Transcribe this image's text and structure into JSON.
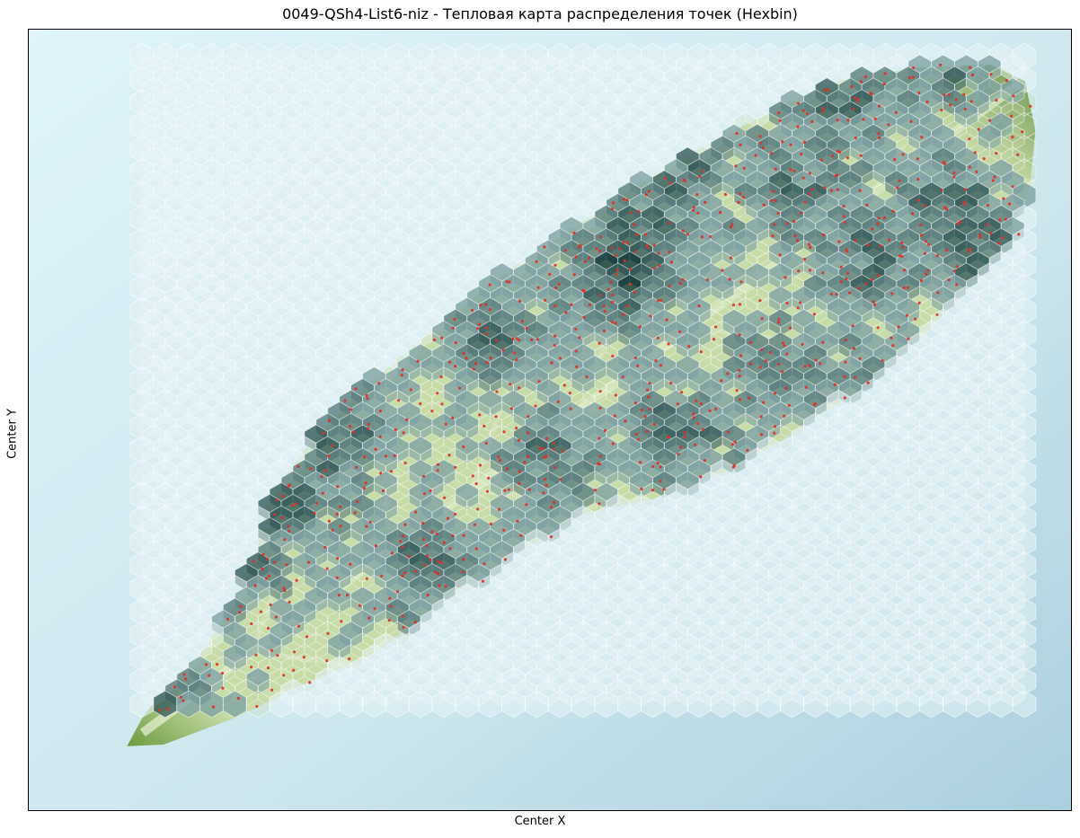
{
  "chart_data": {
    "type": "heatmap",
    "subtype": "hexbin",
    "title": "0049-QSh4-List6-niz - Тепловая карта распределения точек (Hexbin)",
    "xlabel": "Center X",
    "ylabel": "Center Y",
    "xticks": [],
    "yticks": [],
    "grid": false,
    "legend": "none",
    "background": "leaf photograph",
    "hex_grid": {
      "columns": 39,
      "rows": 57,
      "count_range": [
        0,
        4
      ]
    },
    "leaf_outline": [
      [
        0.095,
        0.917
      ],
      [
        0.11,
        0.88
      ],
      [
        0.13,
        0.845
      ],
      [
        0.165,
        0.8
      ],
      [
        0.2,
        0.73
      ],
      [
        0.22,
        0.665
      ],
      [
        0.23,
        0.6
      ],
      [
        0.27,
        0.53
      ],
      [
        0.33,
        0.45
      ],
      [
        0.4,
        0.37
      ],
      [
        0.47,
        0.3
      ],
      [
        0.55,
        0.23
      ],
      [
        0.62,
        0.17
      ],
      [
        0.72,
        0.1
      ],
      [
        0.78,
        0.065
      ],
      [
        0.85,
        0.05
      ],
      [
        0.92,
        0.045
      ],
      [
        0.955,
        0.067
      ],
      [
        0.965,
        0.13
      ],
      [
        0.96,
        0.2
      ],
      [
        0.94,
        0.27
      ],
      [
        0.9,
        0.33
      ],
      [
        0.86,
        0.39
      ],
      [
        0.81,
        0.45
      ],
      [
        0.74,
        0.51
      ],
      [
        0.68,
        0.56
      ],
      [
        0.6,
        0.6
      ],
      [
        0.53,
        0.62
      ],
      [
        0.47,
        0.67
      ],
      [
        0.41,
        0.72
      ],
      [
        0.33,
        0.8
      ],
      [
        0.26,
        0.84
      ],
      [
        0.2,
        0.88
      ],
      [
        0.13,
        0.915
      ]
    ],
    "dense_clusters": [
      [
        0.77,
        0.09
      ],
      [
        0.86,
        0.05
      ],
      [
        0.88,
        0.23
      ],
      [
        0.93,
        0.3
      ],
      [
        0.73,
        0.22
      ],
      [
        0.62,
        0.17
      ],
      [
        0.58,
        0.28
      ],
      [
        0.8,
        0.3
      ],
      [
        0.85,
        0.45
      ],
      [
        0.72,
        0.45
      ],
      [
        0.62,
        0.52
      ],
      [
        0.56,
        0.33
      ],
      [
        0.45,
        0.4
      ],
      [
        0.3,
        0.52
      ],
      [
        0.25,
        0.6
      ],
      [
        0.38,
        0.7
      ],
      [
        0.2,
        0.68
      ],
      [
        0.12,
        0.85
      ],
      [
        0.5,
        0.55
      ],
      [
        0.69,
        0.62
      ]
    ],
    "colors": {
      "hex_empty": "#e6f2f5",
      "hex_edge": "#ffffff",
      "count_low": "#7fa3a2",
      "count_high": "#123a3a",
      "points": "#e0302a",
      "leaf_light": "#c9dca8",
      "leaf_dark": "#6f9b40",
      "background": "#cde6ec"
    }
  }
}
